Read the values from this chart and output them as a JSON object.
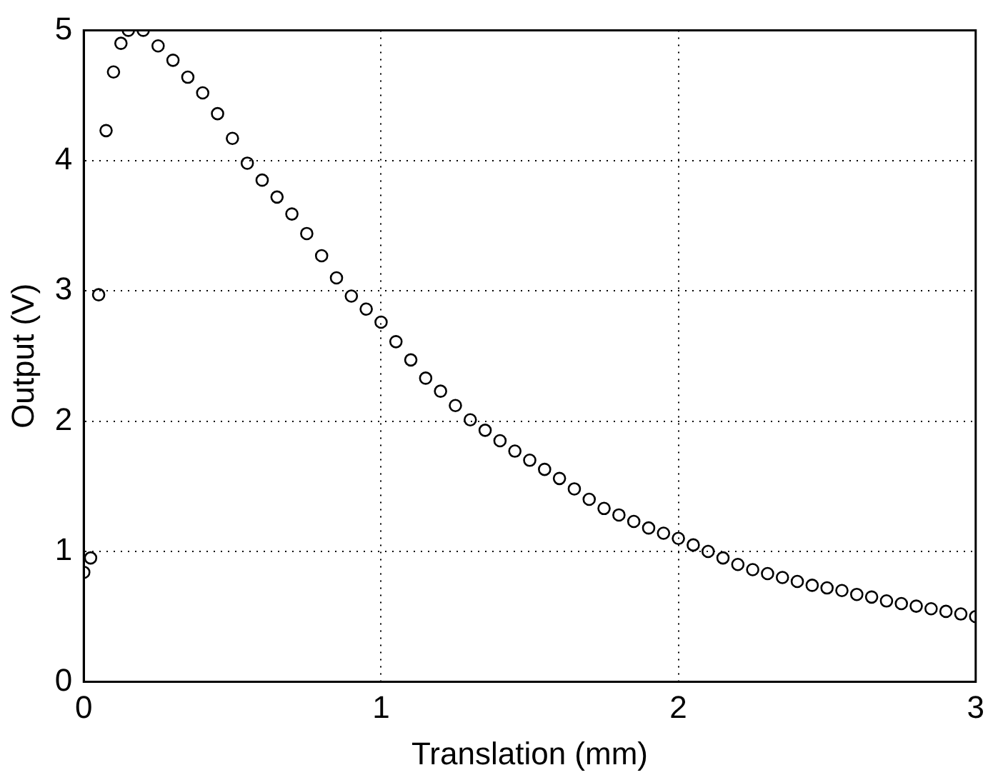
{
  "chart_data": {
    "type": "scatter",
    "xlabel": "Translation (mm)",
    "ylabel": "Output (V)",
    "marker": "circle",
    "grid": true,
    "xlim": [
      0,
      3
    ],
    "xticks": [
      0,
      1,
      2,
      3
    ],
    "ylim": [
      0,
      5
    ],
    "yticks": [
      0,
      1,
      2,
      3,
      4,
      5
    ],
    "series": [
      {
        "color": "#000000",
        "x": [
          0.0,
          0.023,
          0.05,
          0.075,
          0.1,
          0.125,
          0.15,
          0.2,
          0.25,
          0.3,
          0.35,
          0.4,
          0.45,
          0.5,
          0.55,
          0.6,
          0.65,
          0.7,
          0.75,
          0.8,
          0.85,
          0.9,
          0.95,
          1.0,
          1.05,
          1.1,
          1.15,
          1.2,
          1.25,
          1.3,
          1.35,
          1.4,
          1.45,
          1.5,
          1.55,
          1.6,
          1.65,
          1.7,
          1.75,
          1.8,
          1.85,
          1.9,
          1.95,
          2.0,
          2.05,
          2.1,
          2.15,
          2.2,
          2.25,
          2.3,
          2.35,
          2.4,
          2.45,
          2.5,
          2.55,
          2.6,
          2.65,
          2.7,
          2.75,
          2.8,
          2.85,
          2.9,
          2.95,
          3.0
        ],
        "values": [
          0.84,
          0.95,
          2.97,
          4.23,
          4.68,
          4.9,
          5.0,
          5.0,
          4.88,
          4.77,
          4.64,
          4.52,
          4.36,
          4.17,
          3.98,
          3.85,
          3.72,
          3.59,
          3.44,
          3.27,
          3.1,
          2.96,
          2.86,
          2.76,
          2.61,
          2.47,
          2.33,
          2.23,
          2.12,
          2.01,
          1.93,
          1.85,
          1.77,
          1.7,
          1.63,
          1.56,
          1.48,
          1.4,
          1.33,
          1.28,
          1.23,
          1.18,
          1.14,
          1.1,
          1.05,
          1.0,
          0.95,
          0.9,
          0.86,
          0.83,
          0.8,
          0.77,
          0.74,
          0.72,
          0.7,
          0.67,
          0.65,
          0.62,
          0.6,
          0.58,
          0.56,
          0.54,
          0.52,
          0.5
        ]
      }
    ]
  }
}
